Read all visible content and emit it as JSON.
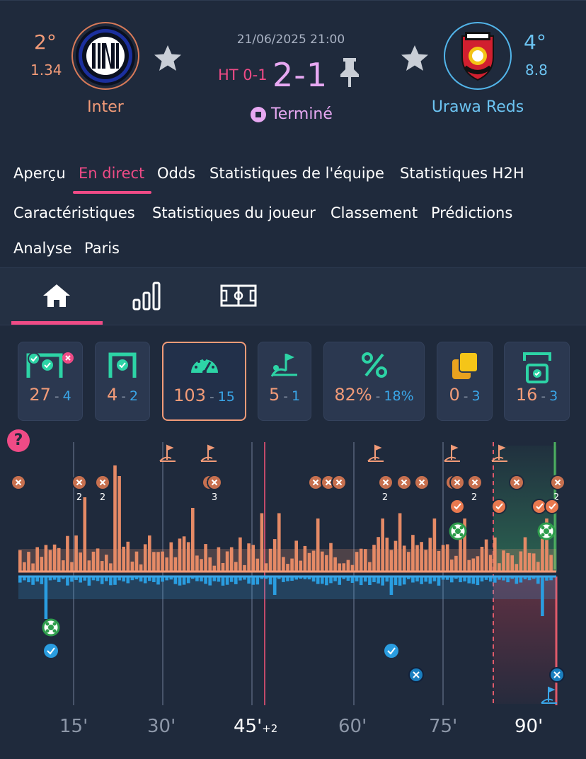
{
  "match": {
    "date": "21/06/2025 21:00",
    "ht": "HT 0-1",
    "score": "2-1",
    "status": "Terminé"
  },
  "home": {
    "rank": "2°",
    "odds": "1.34",
    "name": "Inter",
    "color": "#f29b78"
  },
  "away": {
    "rank": "4°",
    "odds": "8.8",
    "name": "Urawa Reds",
    "color": "#3aa6e8"
  },
  "tabs": [
    "Aperçu",
    "En direct",
    "Odds",
    "Statistiques de l'équipe",
    "Statistiques H2H",
    "Caractéristiques",
    "Statistiques du joueur",
    "Classement",
    "Prédictions",
    "Analyse",
    "Paris"
  ],
  "active_tab": "En direct",
  "subtabs": [
    "home-icon",
    "stats-bars-icon",
    "pitch-icon"
  ],
  "stats": [
    {
      "name": "shots",
      "icon": "goal-shots-icon",
      "home": "27",
      "sep": "-",
      "away": "4"
    },
    {
      "name": "shots-on-target",
      "icon": "goal-target-icon",
      "home": "4",
      "sep": "-",
      "away": "2"
    },
    {
      "name": "attacks",
      "icon": "speedometer-icon",
      "home": "103",
      "sep": "-",
      "away": "15"
    },
    {
      "name": "corners",
      "icon": "corner-flag-icon",
      "home": "5",
      "sep": "-",
      "away": "1"
    },
    {
      "name": "possession",
      "icon": "percent-icon",
      "home": "82%",
      "sep": "-",
      "away": "18%"
    },
    {
      "name": "cards",
      "icon": "cards-icon",
      "home": "0",
      "sep": "-",
      "away": "3"
    },
    {
      "name": "saves",
      "icon": "save-icon",
      "home": "16",
      "sep": "-",
      "away": "3"
    }
  ],
  "timeline": {
    "axis": [
      {
        "label": "15'",
        "minute": 15
      },
      {
        "label": "30'",
        "minute": 30
      },
      {
        "label": "45'",
        "minute": 45,
        "extra": "+2"
      },
      {
        "label": "60'",
        "minute": 60
      },
      {
        "label": "75'",
        "minute": 75
      },
      {
        "label": "90'",
        "minute": 90
      }
    ],
    "markers": [
      "2",
      "2",
      "3",
      "2",
      "2",
      "2"
    ]
  },
  "colors": {
    "background": "#1f2a3c",
    "accent": "#ef4b86",
    "home": "#f29b78",
    "away": "#3aa6e8",
    "score": "#e7a8f2",
    "teal": "#2dd4a6"
  }
}
